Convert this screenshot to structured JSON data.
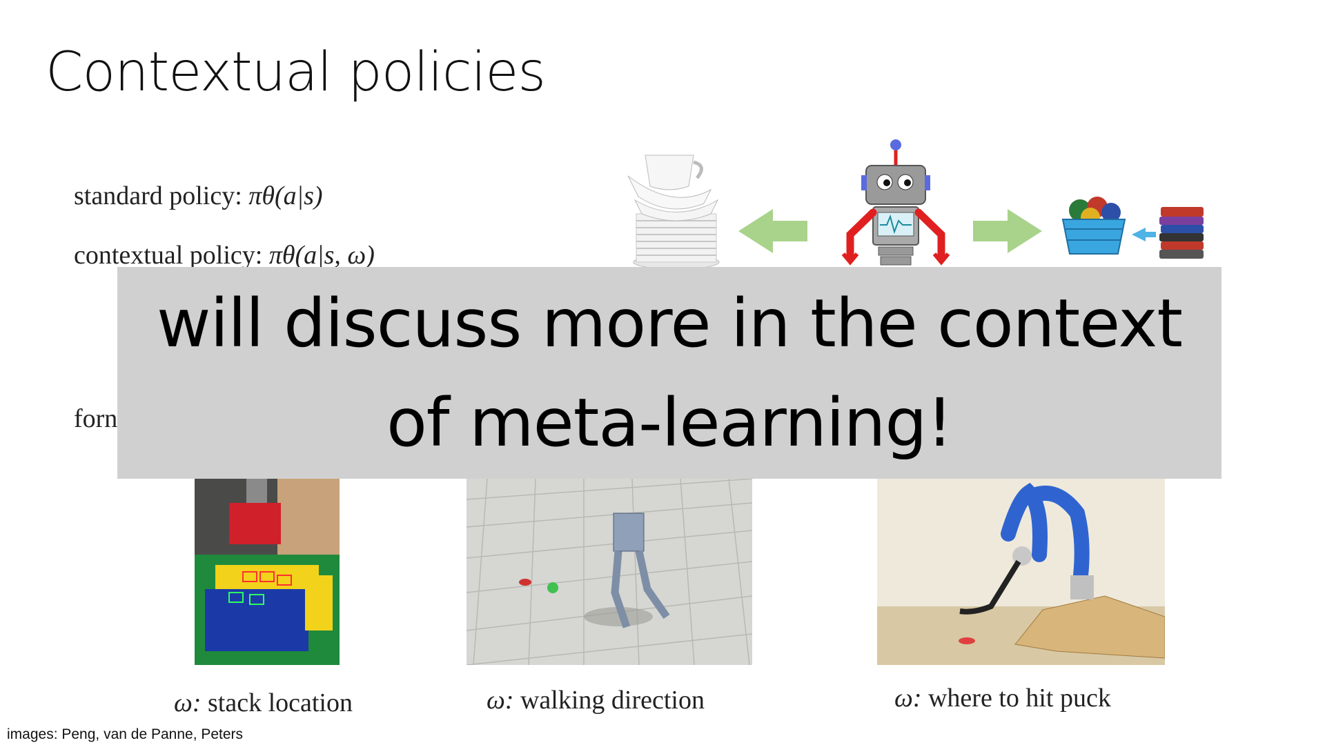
{
  "slide": {
    "title": "Contextual policies",
    "standard_label": "standard policy:",
    "standard_expr": "πθ(a|s)",
    "contextual_label": "contextual policy:",
    "contextual_expr": "πθ(a|s, ω)",
    "formulation_fragment": "forn",
    "banner_line1": "will discuss more in the context",
    "banner_line2": "of meta-learning!",
    "captions": [
      {
        "symbol": "ω:",
        "text": "stack location"
      },
      {
        "symbol": "ω:",
        "text": "walking direction"
      },
      {
        "symbol": "ω:",
        "text": "where to hit puck"
      }
    ],
    "credit": "images: Peng, van de Panne, Peters"
  },
  "icons": {
    "dishes": "dish-stack-icon",
    "robot": "robot-icon",
    "laundry": "laundry-basket-icon",
    "folded": "folded-clothes-icon",
    "arrow_left": "arrow-left-icon",
    "arrow_right": "arrow-right-icon"
  },
  "colors": {
    "banner": "#d0d0d0",
    "arrow": "#a9d38b",
    "robot_red": "#e02020",
    "robot_gray": "#9a9a9a"
  }
}
